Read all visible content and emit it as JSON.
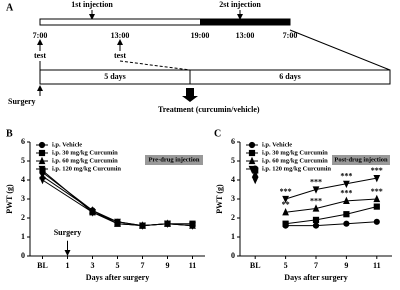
{
  "panel_a": {
    "label": "A",
    "first_injection": "1st injection",
    "second_injection": "2st injection",
    "times": [
      "7:00",
      "13:00",
      "19:00",
      "13:00",
      "7:00"
    ],
    "tests": [
      "test",
      "test"
    ],
    "durations": [
      "5 days",
      "6 days"
    ],
    "surgery": "Surgery",
    "treatment": "Treatment (curcumin/vehicle)"
  },
  "chart_data": [
    {
      "type": "line",
      "panel_label": "B",
      "annotation": "Pre-drug injection",
      "surgery_label": "Surgery",
      "ylabel": "PWT (g)",
      "xlabel": "Days after surgery",
      "x": [
        -1,
        3,
        5,
        7,
        9,
        11
      ],
      "xlim": [
        -2,
        12
      ],
      "xticks": [
        {
          "value": -1,
          "label": "BL"
        },
        1,
        3,
        5,
        7,
        9,
        11
      ],
      "ylim": [
        0,
        6
      ],
      "yticks": [
        0,
        1,
        2,
        3,
        4,
        5,
        6
      ],
      "series": [
        {
          "name": "i.p. Vehicle",
          "color": "#000000",
          "marker": "circle",
          "values": [
            4.4,
            2.4,
            1.8,
            1.6,
            1.7,
            1.6
          ]
        },
        {
          "name": "i.p. 30  mg/kg Curcumin",
          "color": "#000000",
          "marker": "square",
          "values": [
            4.5,
            2.3,
            1.7,
            1.6,
            1.7,
            1.7
          ]
        },
        {
          "name": "i.p. 60  mg/kg Curcumin",
          "color": "#000000",
          "marker": "triangle-up",
          "values": [
            4.2,
            2.4,
            1.7,
            1.6,
            1.7,
            1.6
          ]
        },
        {
          "name": "i.p. 120  mg/kg Curcumin",
          "color": "#000000",
          "marker": "triangle-down",
          "values": [
            4.0,
            2.3,
            1.8,
            1.6,
            1.7,
            1.6
          ]
        }
      ]
    },
    {
      "type": "line",
      "panel_label": "C",
      "annotation": "Post-drug injection",
      "ylabel": "PWT (g)",
      "xlabel": "Days after surgery",
      "x": [
        3,
        4,
        5,
        7,
        9,
        11
      ],
      "xlim": [
        2,
        12
      ],
      "xticks": [
        {
          "value": 3,
          "label": "BL"
        },
        5,
        7,
        9,
        11
      ],
      "ylim": [
        0,
        6
      ],
      "yticks": [
        0,
        1,
        2,
        3,
        4,
        5,
        6
      ],
      "series": [
        {
          "name": "i.p. Vehicle",
          "color": "#000000",
          "marker": "circle",
          "values": [
            4.6,
            null,
            1.6,
            1.6,
            1.7,
            1.8
          ]
        },
        {
          "name": "i.p. 30  mg/kg Curcumin",
          "color": "#000000",
          "marker": "square",
          "values": [
            4.5,
            null,
            1.7,
            1.9,
            2.2,
            2.6
          ]
        },
        {
          "name": "i.p. 60  mg/kg Curcumin",
          "color": "#000000",
          "marker": "triangle-up",
          "values": [
            4.3,
            null,
            2.3,
            2.5,
            2.9,
            3.0
          ],
          "sig_labels": [
            null,
            null,
            "**",
            "***",
            "***",
            "***"
          ]
        },
        {
          "name": "i.p. 120  mg/kg Curcumin",
          "color": "#000000",
          "marker": "triangle-down",
          "values": [
            4.0,
            null,
            3.0,
            3.5,
            3.8,
            4.1
          ],
          "sig_labels": [
            null,
            null,
            "***",
            "***",
            "***",
            "***"
          ]
        }
      ]
    }
  ]
}
